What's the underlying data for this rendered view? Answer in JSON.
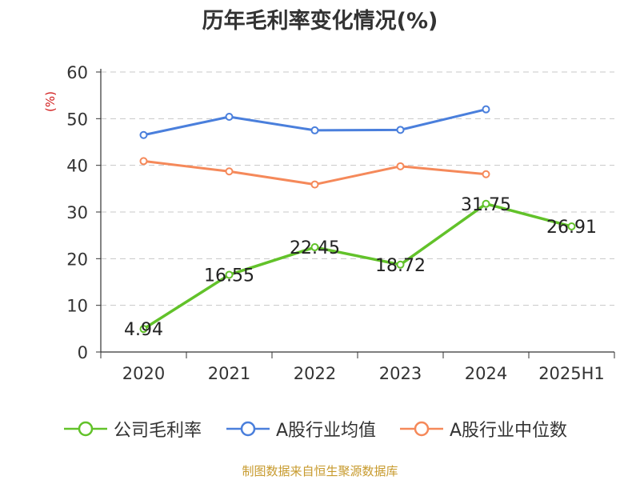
{
  "title": "历年毛利率变化情况(%)",
  "source": "制图数据来自恒生聚源数据库",
  "chart_data": {
    "type": "line",
    "title": "历年毛利率变化情况(%)",
    "ylabel": "(%)",
    "ylim": [
      0,
      60
    ],
    "yticks": [
      0,
      10,
      20,
      30,
      40,
      50,
      60
    ],
    "categories": [
      "2020",
      "2021",
      "2022",
      "2023",
      "2024",
      "2025H1"
    ],
    "grid": "horizontal dashed",
    "legend_position": "bottom",
    "series": [
      {
        "name": "公司毛利率",
        "color": "#62c22a",
        "labels": [
          "4.94",
          "16.55",
          "22.45",
          "18.72",
          "31.75",
          "26.91"
        ],
        "values": [
          4.94,
          16.55,
          22.45,
          18.72,
          31.75,
          26.91
        ]
      },
      {
        "name": "A股行业均值",
        "color": "#4a7fdc",
        "values": [
          46.5,
          50.4,
          47.5,
          47.6,
          52.0,
          null
        ]
      },
      {
        "name": "A股行业中位数",
        "color": "#f5895a",
        "values": [
          40.9,
          38.7,
          35.9,
          39.8,
          38.1,
          null
        ]
      }
    ]
  }
}
